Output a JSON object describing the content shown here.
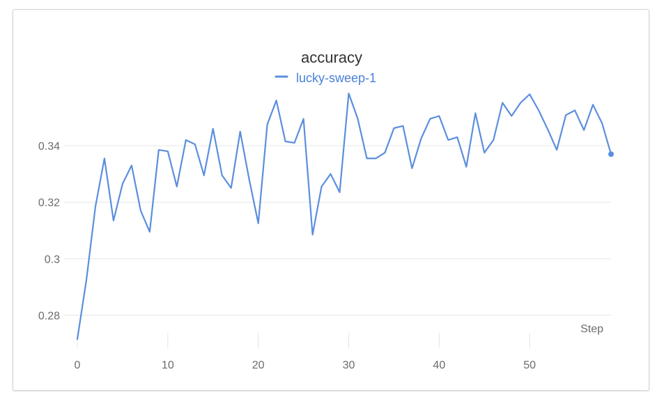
{
  "chart_data": {
    "type": "line",
    "title": "accuracy",
    "xlabel": "Step",
    "ylabel": "",
    "xlim": [
      0,
      59
    ],
    "ylim": [
      0.27,
      0.36
    ],
    "x_ticks": [
      0,
      10,
      20,
      30,
      40,
      50
    ],
    "x_tick_labels": [
      "0",
      "10",
      "20",
      "30",
      "40",
      "50"
    ],
    "y_ticks": [
      0.28,
      0.3,
      0.32,
      0.34
    ],
    "y_tick_labels": [
      "0.28",
      "0.3",
      "0.32",
      "0.34"
    ],
    "grid": true,
    "legend_position": "top-center",
    "series": [
      {
        "name": "lucky-sweep-1",
        "color": "#5b8ede",
        "x": [
          0,
          1,
          2,
          3,
          4,
          5,
          6,
          7,
          8,
          9,
          10,
          11,
          12,
          13,
          14,
          15,
          16,
          17,
          18,
          19,
          20,
          21,
          22,
          23,
          24,
          25,
          26,
          27,
          28,
          29,
          30,
          31,
          32,
          33,
          34,
          35,
          36,
          37,
          38,
          39,
          40,
          41,
          42,
          43,
          44,
          45,
          46,
          47,
          48,
          49,
          50,
          51,
          52,
          53,
          54,
          55,
          56,
          57,
          58,
          59
        ],
        "values": [
          0.2715,
          0.2925,
          0.3185,
          0.3355,
          0.3135,
          0.3265,
          0.333,
          0.317,
          0.3095,
          0.3385,
          0.338,
          0.3255,
          0.342,
          0.3405,
          0.3295,
          0.346,
          0.3295,
          0.325,
          0.345,
          0.328,
          0.3125,
          0.3475,
          0.356,
          0.3415,
          0.341,
          0.3495,
          0.3085,
          0.3255,
          0.33,
          0.3235,
          0.3585,
          0.3495,
          0.3355,
          0.3355,
          0.3375,
          0.3462,
          0.347,
          0.332,
          0.3425,
          0.3495,
          0.3505,
          0.342,
          0.343,
          0.3325,
          0.3515,
          0.3375,
          0.342,
          0.3552,
          0.3505,
          0.3552,
          0.3582,
          0.3525,
          0.3458,
          0.3385,
          0.3508,
          0.3525,
          0.3455,
          0.3545,
          0.348,
          0.337
        ]
      }
    ]
  }
}
